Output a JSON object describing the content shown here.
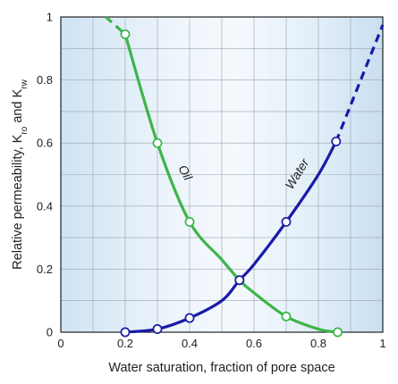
{
  "chart_data": {
    "type": "line",
    "title": "",
    "xlabel": "Water saturation, fraction of pore space",
    "ylabel_parts": {
      "main": "Relative permeability, K",
      "sub1": "ro",
      "mid": " and K",
      "sub2": "rw"
    },
    "xlim": [
      0,
      1
    ],
    "ylim": [
      0,
      1
    ],
    "xticks": [
      0,
      0.2,
      0.4,
      0.6,
      0.8,
      1
    ],
    "yticks": [
      0,
      0.2,
      0.4,
      0.6,
      0.8,
      1
    ],
    "xtick_labels": [
      "0",
      "0.2",
      "0.4",
      "0.6",
      "0.8",
      "1"
    ],
    "ytick_labels": [
      "0",
      "0.2",
      "0.4",
      "0.6",
      "0.8",
      "1"
    ],
    "grid": true,
    "minor_grid_step": 0.1,
    "legend": "none",
    "series": [
      {
        "name": "Oil",
        "color": "#3cb54a",
        "line": [
          [
            0.2,
            0.945
          ],
          [
            0.3,
            0.6
          ],
          [
            0.4,
            0.35
          ],
          [
            0.5,
            0.23
          ],
          [
            0.555,
            0.165
          ],
          [
            0.6,
            0.125
          ],
          [
            0.7,
            0.05
          ],
          [
            0.8,
            0.01
          ],
          [
            0.86,
            0
          ]
        ],
        "dashed_extension": [
          [
            0.14,
            1.0
          ],
          [
            0.2,
            0.945
          ]
        ],
        "points": [
          [
            0.2,
            0.945
          ],
          [
            0.3,
            0.6
          ],
          [
            0.4,
            0.35
          ],
          [
            0.555,
            0.165
          ],
          [
            0.7,
            0.05
          ],
          [
            0.86,
            0
          ]
        ]
      },
      {
        "name": "Water",
        "color": "#1a1aa8",
        "line": [
          [
            0.2,
            0
          ],
          [
            0.3,
            0.01
          ],
          [
            0.4,
            0.045
          ],
          [
            0.5,
            0.1
          ],
          [
            0.555,
            0.165
          ],
          [
            0.6,
            0.215
          ],
          [
            0.7,
            0.35
          ],
          [
            0.8,
            0.5
          ],
          [
            0.855,
            0.605
          ]
        ],
        "dashed_extension": [
          [
            0.855,
            0.605
          ],
          [
            1.0,
            0.975
          ]
        ],
        "points": [
          [
            0.2,
            0
          ],
          [
            0.3,
            0.01
          ],
          [
            0.4,
            0.045
          ],
          [
            0.555,
            0.165
          ],
          [
            0.7,
            0.35
          ],
          [
            0.855,
            0.605
          ]
        ]
      }
    ],
    "annotations": [
      "Oil",
      "Water"
    ]
  }
}
